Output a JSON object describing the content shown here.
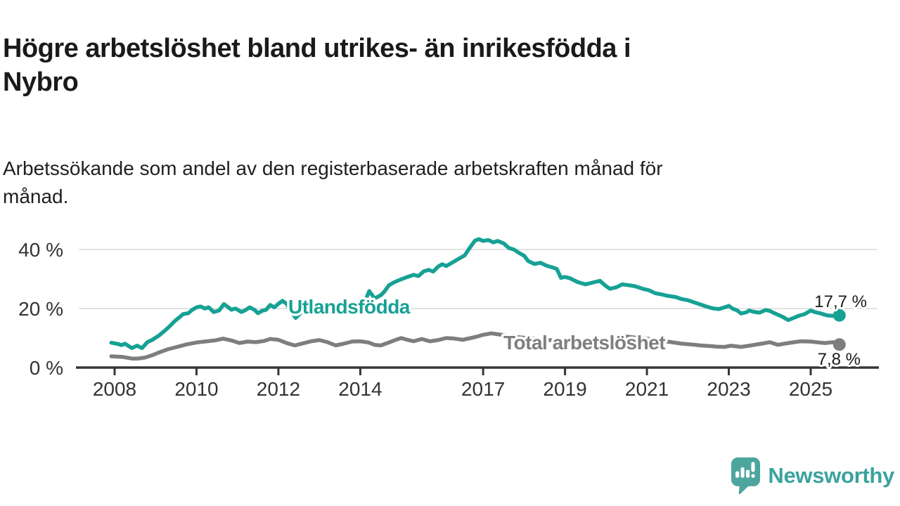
{
  "title": {
    "lines": [
      "Högre arbetslöshet bland utrikes- än inrikesfödda i",
      "Nybro"
    ]
  },
  "subtitle": {
    "lines": [
      "Arbetssökande som andel av den registerbaserade arbetskraften månad för",
      "månad."
    ]
  },
  "branding": {
    "name": "Newsworthy",
    "icon": "speech-bubble-bar-chart",
    "color": "#4ca69e"
  },
  "colors": {
    "accent_teal": "#17a195",
    "neutral_gray": "#7e7e7e",
    "axis": "#363636",
    "grid": "#d8d8d8",
    "text": "#1a1a1a"
  },
  "chart_data": {
    "type": "line",
    "title": "Högre arbetslöshet bland utrikes- än inrikesfödda i Nybro",
    "xlabel": "",
    "ylabel": "",
    "unit": "%",
    "xlim": [
      2007.9,
      2025.85
    ],
    "ylim": [
      0,
      45
    ],
    "grid": "horizontal",
    "legend_position": "inline-labels",
    "x_ticks": [
      {
        "year": 2008,
        "label": "2008"
      },
      {
        "year": 2010,
        "label": "2010"
      },
      {
        "year": 2012,
        "label": "2012"
      },
      {
        "year": 2014,
        "label": "2014"
      },
      {
        "year": 2017,
        "label": "2017"
      },
      {
        "year": 2019,
        "label": "2019"
      },
      {
        "year": 2021,
        "label": "2021"
      },
      {
        "year": 2023,
        "label": "2023"
      },
      {
        "year": 2025,
        "label": "2025"
      }
    ],
    "y_ticks": [
      {
        "value": 0,
        "label": "0 %"
      },
      {
        "value": 20,
        "label": "20 %"
      },
      {
        "value": 40,
        "label": "40 %"
      }
    ],
    "series": [
      {
        "name": "Utlandsfödda",
        "color": "#17a195",
        "end_label": "17,7 %",
        "end_value": 17.7,
        "points": [
          [
            2007.92,
            8.4
          ],
          [
            2008.08,
            8.0
          ],
          [
            2008.17,
            7.6
          ],
          [
            2008.25,
            8.1
          ],
          [
            2008.42,
            6.6
          ],
          [
            2008.55,
            7.4
          ],
          [
            2008.67,
            6.6
          ],
          [
            2008.8,
            8.6
          ],
          [
            2008.92,
            9.4
          ],
          [
            2009.08,
            10.8
          ],
          [
            2009.2,
            12.2
          ],
          [
            2009.33,
            13.8
          ],
          [
            2009.45,
            15.5
          ],
          [
            2009.58,
            17.0
          ],
          [
            2009.67,
            18.1
          ],
          [
            2009.8,
            18.4
          ],
          [
            2009.9,
            19.6
          ],
          [
            2010.0,
            20.4
          ],
          [
            2010.1,
            20.7
          ],
          [
            2010.2,
            20.0
          ],
          [
            2010.3,
            20.4
          ],
          [
            2010.42,
            18.8
          ],
          [
            2010.55,
            19.3
          ],
          [
            2010.67,
            21.5
          ],
          [
            2010.75,
            20.7
          ],
          [
            2010.85,
            19.6
          ],
          [
            2010.95,
            20.0
          ],
          [
            2011.1,
            18.8
          ],
          [
            2011.2,
            19.5
          ],
          [
            2011.3,
            20.4
          ],
          [
            2011.42,
            19.5
          ],
          [
            2011.5,
            18.4
          ],
          [
            2011.6,
            19.2
          ],
          [
            2011.7,
            19.6
          ],
          [
            2011.8,
            21.2
          ],
          [
            2011.9,
            20.4
          ],
          [
            2012.0,
            21.6
          ],
          [
            2012.1,
            22.6
          ],
          [
            2012.2,
            21.6
          ],
          [
            2012.3,
            19.3
          ],
          [
            2012.42,
            16.8
          ],
          [
            2012.55,
            18.6
          ],
          [
            2012.7,
            19.9
          ],
          [
            2012.85,
            20.7
          ],
          [
            2013.0,
            20.3
          ],
          [
            2013.17,
            19.8
          ],
          [
            2013.33,
            20.2
          ],
          [
            2013.5,
            20.4
          ],
          [
            2013.67,
            20.7
          ],
          [
            2013.83,
            20.9
          ],
          [
            2014.0,
            21.4
          ],
          [
            2014.13,
            23.0
          ],
          [
            2014.22,
            25.9
          ],
          [
            2014.35,
            23.4
          ],
          [
            2014.5,
            24.5
          ],
          [
            2014.58,
            25.6
          ],
          [
            2014.7,
            27.9
          ],
          [
            2014.83,
            28.9
          ],
          [
            2015.0,
            29.9
          ],
          [
            2015.15,
            30.7
          ],
          [
            2015.3,
            31.4
          ],
          [
            2015.42,
            31.0
          ],
          [
            2015.55,
            32.6
          ],
          [
            2015.67,
            33.1
          ],
          [
            2015.78,
            32.5
          ],
          [
            2015.9,
            34.2
          ],
          [
            2016.0,
            35.0
          ],
          [
            2016.1,
            34.4
          ],
          [
            2016.25,
            35.6
          ],
          [
            2016.4,
            36.8
          ],
          [
            2016.55,
            38.0
          ],
          [
            2016.67,
            40.5
          ],
          [
            2016.8,
            43.0
          ],
          [
            2016.9,
            43.5
          ],
          [
            2017.0,
            42.9
          ],
          [
            2017.13,
            43.2
          ],
          [
            2017.25,
            42.4
          ],
          [
            2017.35,
            42.9
          ],
          [
            2017.5,
            42.1
          ],
          [
            2017.63,
            40.5
          ],
          [
            2017.75,
            40.0
          ],
          [
            2017.88,
            38.8
          ],
          [
            2018.0,
            37.9
          ],
          [
            2018.1,
            36.1
          ],
          [
            2018.25,
            35.1
          ],
          [
            2018.4,
            35.5
          ],
          [
            2018.55,
            34.5
          ],
          [
            2018.7,
            33.9
          ],
          [
            2018.8,
            33.4
          ],
          [
            2018.9,
            30.4
          ],
          [
            2019.0,
            30.7
          ],
          [
            2019.13,
            30.2
          ],
          [
            2019.3,
            29.0
          ],
          [
            2019.5,
            28.2
          ],
          [
            2019.65,
            28.7
          ],
          [
            2019.85,
            29.4
          ],
          [
            2020.0,
            27.6
          ],
          [
            2020.1,
            26.7
          ],
          [
            2020.25,
            27.2
          ],
          [
            2020.4,
            28.2
          ],
          [
            2020.55,
            27.9
          ],
          [
            2020.7,
            27.6
          ],
          [
            2020.9,
            26.7
          ],
          [
            2021.05,
            26.2
          ],
          [
            2021.2,
            25.2
          ],
          [
            2021.35,
            24.8
          ],
          [
            2021.5,
            24.3
          ],
          [
            2021.7,
            23.9
          ],
          [
            2021.85,
            23.2
          ],
          [
            2022.0,
            22.8
          ],
          [
            2022.15,
            22.1
          ],
          [
            2022.3,
            21.4
          ],
          [
            2022.45,
            20.7
          ],
          [
            2022.6,
            20.1
          ],
          [
            2022.75,
            19.8
          ],
          [
            2022.9,
            20.4
          ],
          [
            2023.0,
            20.9
          ],
          [
            2023.1,
            19.9
          ],
          [
            2023.2,
            19.4
          ],
          [
            2023.3,
            18.3
          ],
          [
            2023.42,
            18.7
          ],
          [
            2023.5,
            19.3
          ],
          [
            2023.6,
            18.9
          ],
          [
            2023.75,
            18.6
          ],
          [
            2023.9,
            19.5
          ],
          [
            2024.0,
            19.2
          ],
          [
            2024.1,
            18.5
          ],
          [
            2024.25,
            17.6
          ],
          [
            2024.35,
            16.9
          ],
          [
            2024.45,
            16.1
          ],
          [
            2024.6,
            16.9
          ],
          [
            2024.72,
            17.6
          ],
          [
            2024.85,
            18.1
          ],
          [
            2025.0,
            19.3
          ],
          [
            2025.1,
            18.8
          ],
          [
            2025.25,
            18.3
          ],
          [
            2025.4,
            17.7
          ],
          [
            2025.55,
            17.5
          ],
          [
            2025.7,
            17.7
          ]
        ]
      },
      {
        "name": "Total arbetslöshet",
        "color": "#7e7e7e",
        "end_label": "7,8 %",
        "end_value": 7.8,
        "points": [
          [
            2007.92,
            3.8
          ],
          [
            2008.2,
            3.6
          ],
          [
            2008.45,
            3.0
          ],
          [
            2008.6,
            3.1
          ],
          [
            2008.75,
            3.4
          ],
          [
            2008.92,
            4.2
          ],
          [
            2009.1,
            5.2
          ],
          [
            2009.3,
            6.2
          ],
          [
            2009.5,
            6.9
          ],
          [
            2009.75,
            7.8
          ],
          [
            2010.0,
            8.5
          ],
          [
            2010.2,
            8.8
          ],
          [
            2010.45,
            9.2
          ],
          [
            2010.65,
            9.8
          ],
          [
            2010.85,
            9.2
          ],
          [
            2011.05,
            8.3
          ],
          [
            2011.25,
            8.8
          ],
          [
            2011.45,
            8.6
          ],
          [
            2011.65,
            9.0
          ],
          [
            2011.8,
            9.7
          ],
          [
            2012.0,
            9.4
          ],
          [
            2012.2,
            8.3
          ],
          [
            2012.4,
            7.5
          ],
          [
            2012.6,
            8.2
          ],
          [
            2012.8,
            8.9
          ],
          [
            2013.0,
            9.3
          ],
          [
            2013.2,
            8.6
          ],
          [
            2013.4,
            7.5
          ],
          [
            2013.6,
            8.1
          ],
          [
            2013.8,
            8.8
          ],
          [
            2014.0,
            8.9
          ],
          [
            2014.2,
            8.5
          ],
          [
            2014.35,
            7.7
          ],
          [
            2014.5,
            7.5
          ],
          [
            2014.7,
            8.5
          ],
          [
            2014.85,
            9.3
          ],
          [
            2015.0,
            10.0
          ],
          [
            2015.15,
            9.4
          ],
          [
            2015.3,
            8.9
          ],
          [
            2015.5,
            9.7
          ],
          [
            2015.7,
            8.9
          ],
          [
            2015.9,
            9.3
          ],
          [
            2016.1,
            10.0
          ],
          [
            2016.3,
            9.8
          ],
          [
            2016.5,
            9.4
          ],
          [
            2016.7,
            10.0
          ],
          [
            2016.85,
            10.5
          ],
          [
            2017.0,
            11.1
          ],
          [
            2017.2,
            11.6
          ],
          [
            2017.4,
            11.2
          ],
          [
            2017.6,
            10.8
          ],
          [
            2017.8,
            10.4
          ],
          [
            2018.0,
            10.1
          ],
          [
            2018.3,
            9.7
          ],
          [
            2018.6,
            9.3
          ],
          [
            2018.9,
            9.0
          ],
          [
            2019.2,
            8.8
          ],
          [
            2019.5,
            8.6
          ],
          [
            2019.8,
            8.8
          ],
          [
            2020.05,
            9.5
          ],
          [
            2020.3,
            10.3
          ],
          [
            2020.5,
            10.5
          ],
          [
            2020.7,
            10.2
          ],
          [
            2021.0,
            9.8
          ],
          [
            2021.3,
            9.2
          ],
          [
            2021.6,
            8.6
          ],
          [
            2021.85,
            8.1
          ],
          [
            2022.1,
            7.8
          ],
          [
            2022.3,
            7.5
          ],
          [
            2022.5,
            7.3
          ],
          [
            2022.7,
            7.1
          ],
          [
            2022.9,
            7.0
          ],
          [
            2023.05,
            7.4
          ],
          [
            2023.3,
            7.0
          ],
          [
            2023.5,
            7.4
          ],
          [
            2023.8,
            8.1
          ],
          [
            2024.0,
            8.6
          ],
          [
            2024.2,
            7.7
          ],
          [
            2024.4,
            8.2
          ],
          [
            2024.6,
            8.6
          ],
          [
            2024.75,
            8.9
          ],
          [
            2025.0,
            8.8
          ],
          [
            2025.2,
            8.5
          ],
          [
            2025.35,
            8.3
          ],
          [
            2025.55,
            8.6
          ],
          [
            2025.7,
            7.8
          ]
        ]
      }
    ]
  }
}
